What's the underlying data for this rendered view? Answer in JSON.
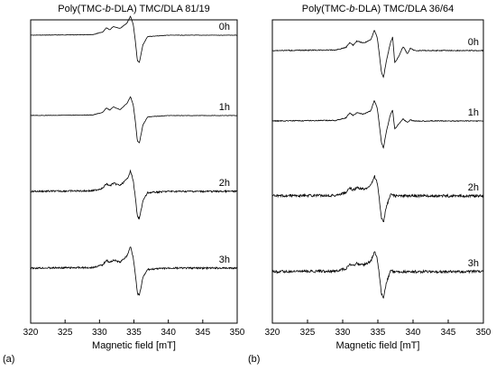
{
  "chart_data": [
    {
      "panel_label": "(a)",
      "title_prefix": "Poly(TMC-",
      "title_italic": "b",
      "title_suffix": "-DLA) TMC/DLA 81/19",
      "type": "line",
      "xlabel": "Magnetic field [mT]",
      "xlim": [
        320,
        350
      ],
      "xticks": [
        320,
        325,
        330,
        335,
        340,
        345,
        350
      ],
      "y_axis_shown": false,
      "grid": false,
      "legend": "none",
      "series": [
        {
          "name": "0h",
          "x": [
            320,
            329,
            330.5,
            331,
            331.5,
            332,
            333,
            334,
            334.5,
            334.9,
            335.2,
            335.5,
            335.8,
            336.3,
            337,
            340,
            350
          ],
          "y": [
            0,
            0.02,
            0.12,
            0.28,
            0.2,
            0.32,
            0.25,
            0.45,
            0.7,
            0.4,
            -0.2,
            -0.95,
            -1.0,
            -0.35,
            -0.05,
            0,
            0
          ]
        },
        {
          "name": "1h",
          "x": [
            320,
            329,
            330.5,
            331,
            331.5,
            332,
            333,
            334,
            334.5,
            334.9,
            335.2,
            335.5,
            335.8,
            336.3,
            337,
            340,
            350
          ],
          "y": [
            0,
            0.02,
            0.12,
            0.28,
            0.2,
            0.32,
            0.22,
            0.45,
            0.7,
            0.4,
            -0.2,
            -0.95,
            -1.0,
            -0.35,
            -0.05,
            0,
            0
          ]
        },
        {
          "name": "2h",
          "x": [
            320,
            329,
            330.5,
            331,
            331.5,
            332,
            333,
            334,
            334.5,
            334.9,
            335.2,
            335.5,
            335.8,
            336.3,
            337,
            340,
            350
          ],
          "y": [
            0,
            0.02,
            0.12,
            0.28,
            0.2,
            0.3,
            0.22,
            0.45,
            0.75,
            0.4,
            -0.2,
            -0.95,
            -1.0,
            -0.35,
            -0.05,
            0,
            0
          ]
        },
        {
          "name": "3h",
          "x": [
            320,
            329,
            330.5,
            331,
            331.5,
            332,
            333,
            334,
            334.5,
            334.9,
            335.2,
            335.5,
            335.8,
            336.3,
            337,
            340,
            350
          ],
          "y": [
            0,
            0.02,
            0.12,
            0.3,
            0.2,
            0.3,
            0.22,
            0.45,
            0.8,
            0.4,
            -0.2,
            -0.95,
            -1.0,
            -0.35,
            -0.05,
            0,
            0
          ]
        }
      ]
    },
    {
      "panel_label": "(b)",
      "title_prefix": "Poly(TMC-",
      "title_italic": "b",
      "title_suffix": "-DLA) TMC/DLA 36/64",
      "type": "line",
      "xlabel": "Magnetic field [mT]",
      "xlim": [
        320,
        350
      ],
      "xticks": [
        320,
        325,
        330,
        335,
        340,
        345,
        350
      ],
      "y_axis_shown": false,
      "grid": false,
      "legend": "none",
      "series": [
        {
          "name": "0h",
          "x": [
            320,
            329,
            330.5,
            331,
            331.5,
            332,
            333,
            334,
            334.5,
            334.9,
            335.2,
            335.5,
            335.8,
            336.2,
            336.8,
            337.1,
            337.4,
            338,
            338.6,
            339.2,
            339.6,
            340.2,
            350
          ],
          "y": [
            0,
            0.02,
            0.12,
            0.3,
            0.2,
            0.35,
            0.28,
            0.4,
            0.75,
            0.5,
            -0.1,
            -0.8,
            -1.0,
            -0.4,
            0.3,
            0.5,
            -0.45,
            -0.2,
            0.15,
            -0.12,
            0.08,
            0,
            0
          ]
        },
        {
          "name": "1h",
          "x": [
            320,
            329,
            330.5,
            331,
            331.5,
            332,
            333,
            334,
            334.5,
            334.9,
            335.2,
            335.5,
            335.8,
            336.2,
            336.8,
            337.1,
            337.4,
            338,
            338.6,
            339.2,
            339.6,
            340.2,
            350
          ],
          "y": [
            0,
            0.02,
            0.12,
            0.3,
            0.2,
            0.3,
            0.25,
            0.38,
            0.75,
            0.5,
            -0.1,
            -0.8,
            -1.0,
            -0.4,
            0.25,
            0.4,
            -0.3,
            -0.1,
            0.08,
            -0.06,
            0.04,
            0,
            0
          ]
        },
        {
          "name": "2h",
          "x": [
            320,
            329,
            330.5,
            331,
            331.5,
            332,
            333,
            334,
            334.5,
            334.9,
            335.2,
            335.5,
            335.8,
            336.2,
            336.8,
            337.1,
            337.4,
            338,
            338.6,
            339.2,
            339.6,
            340.2,
            350
          ],
          "y": [
            0,
            0.02,
            0.12,
            0.3,
            0.2,
            0.3,
            0.25,
            0.38,
            0.75,
            0.5,
            -0.1,
            -0.8,
            -1.0,
            -0.4,
            0.05,
            0.05,
            0,
            0,
            0,
            0,
            0,
            0,
            0
          ]
        },
        {
          "name": "3h",
          "x": [
            320,
            329,
            330.5,
            331,
            331.5,
            332,
            333,
            334,
            334.5,
            334.9,
            335.2,
            335.5,
            335.8,
            336.2,
            336.8,
            337.1,
            337.4,
            338,
            338.6,
            339.2,
            339.6,
            340.2,
            350
          ],
          "y": [
            0,
            0.02,
            0.12,
            0.3,
            0.2,
            0.3,
            0.25,
            0.38,
            0.75,
            0.5,
            -0.1,
            -0.8,
            -1.0,
            -0.4,
            0.03,
            0.03,
            0,
            0,
            0,
            0,
            0,
            0,
            0
          ]
        }
      ]
    }
  ]
}
